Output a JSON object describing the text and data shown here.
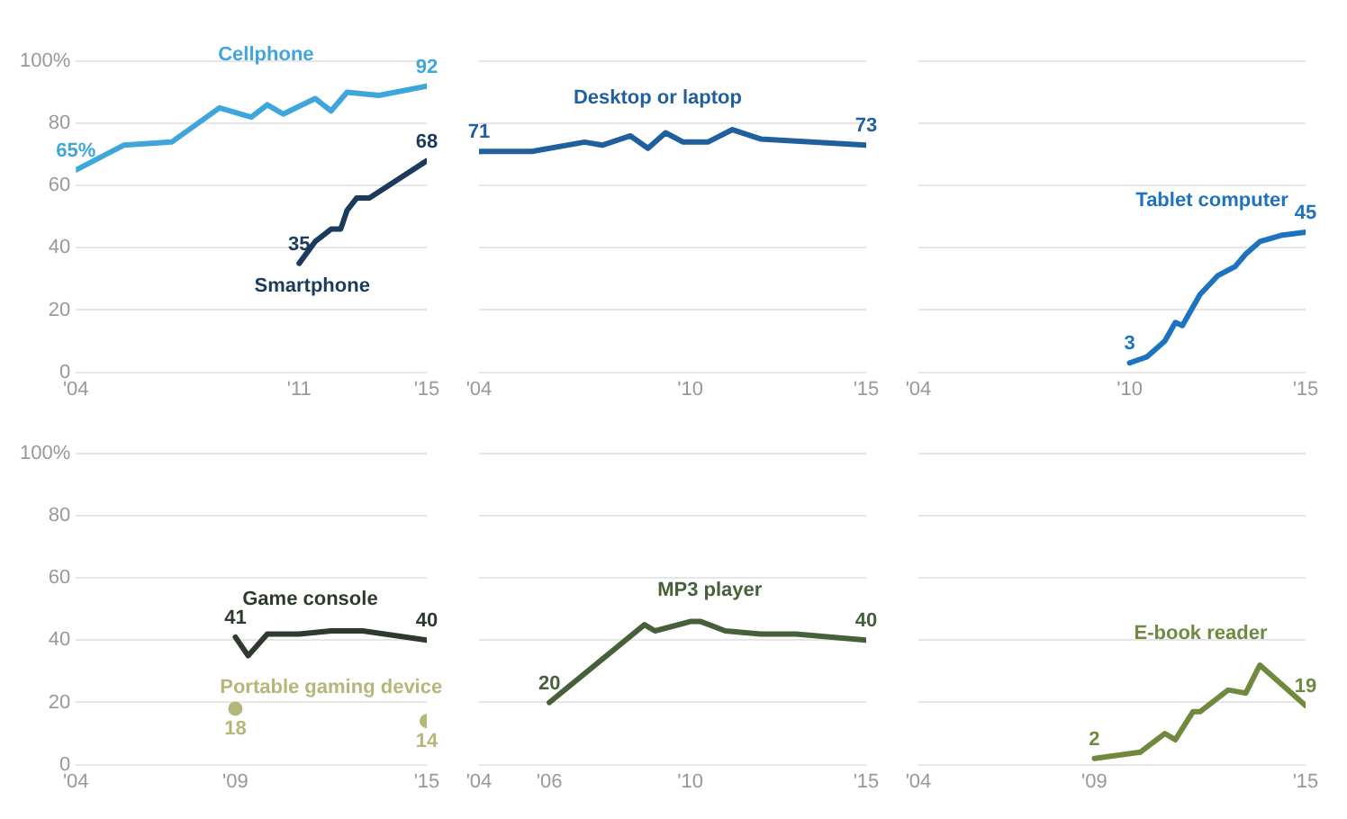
{
  "chart_data": [
    {
      "type": "line",
      "xlim": [
        2004,
        2015
      ],
      "xticks": [
        {
          "value": 2004,
          "label": "'04"
        },
        {
          "value": 2011,
          "label": "'11"
        },
        {
          "value": 2015,
          "label": "'15"
        }
      ],
      "ylim": [
        0,
        100
      ],
      "yticks": [
        0,
        20,
        40,
        60,
        80,
        {
          "value": 100,
          "label": "100%"
        }
      ],
      "grid": "y",
      "marker": "none",
      "series": [
        {
          "name": "Cellphone",
          "color": "#3fa6dc",
          "x": [
            2004,
            2005.5,
            2007,
            2008.5,
            2009.5,
            2010,
            2010.5,
            2011.5,
            2012,
            2012.5,
            2013.5,
            2015
          ],
          "values": [
            65,
            73,
            74,
            85,
            82,
            86,
            83,
            88,
            84,
            90,
            89,
            92
          ]
        },
        {
          "name": "Smartphone",
          "color": "#1b3a5c",
          "x": [
            2011,
            2011.5,
            2012,
            2012.3,
            2012.5,
            2012.8,
            2013.2,
            2015
          ],
          "values": [
            35,
            42,
            46,
            46,
            52,
            56,
            56,
            68
          ]
        }
      ],
      "annotations": [
        {
          "text": "65%",
          "x": 2004,
          "y": 65
        },
        {
          "text": "92",
          "x": 2015,
          "y": 92
        },
        {
          "text": "35",
          "x": 2011,
          "y": 35
        },
        {
          "text": "68",
          "x": 2015,
          "y": 68
        }
      ]
    },
    {
      "type": "line",
      "xlim": [
        2004,
        2015
      ],
      "xticks": [
        {
          "value": 2004,
          "label": "'04"
        },
        {
          "value": 2010,
          "label": "'10"
        },
        {
          "value": 2015,
          "label": "'15"
        }
      ],
      "ylim": [
        0,
        100
      ],
      "yticks": [
        0,
        20,
        40,
        60,
        80,
        100
      ],
      "tick_labels": "x",
      "grid": "y",
      "marker": "none",
      "series": [
        {
          "name": "Desktop or laptop",
          "color": "#1f5f9e",
          "x": [
            2004,
            2005.5,
            2007,
            2007.5,
            2008.3,
            2008.8,
            2009.3,
            2009.8,
            2010.5,
            2011.2,
            2012,
            2015
          ],
          "values": [
            71,
            71,
            74,
            73,
            76,
            72,
            77,
            74,
            74,
            78,
            75,
            73
          ]
        }
      ],
      "annotations": [
        {
          "text": "71",
          "x": 2004,
          "y": 71
        },
        {
          "text": "73",
          "x": 2015,
          "y": 73
        }
      ]
    },
    {
      "type": "line",
      "xlim": [
        2004,
        2015
      ],
      "xticks": [
        {
          "value": 2004,
          "label": "'04"
        },
        {
          "value": 2010,
          "label": "'10"
        },
        {
          "value": 2015,
          "label": "'15"
        }
      ],
      "ylim": [
        0,
        100
      ],
      "yticks": [
        0,
        20,
        40,
        60,
        80,
        100
      ],
      "tick_labels": "x",
      "grid": "y",
      "marker": "none",
      "series": [
        {
          "name": "Tablet computer",
          "color": "#1e73be",
          "x": [
            2010,
            2010.5,
            2011,
            2011.3,
            2011.5,
            2012,
            2012.5,
            2013,
            2013.3,
            2013.7,
            2014.3,
            2015
          ],
          "values": [
            3,
            5,
            10,
            16,
            15,
            25,
            31,
            34,
            38,
            42,
            44,
            45
          ]
        }
      ],
      "annotations": [
        {
          "text": "3",
          "x": 2010,
          "y": 3
        },
        {
          "text": "45",
          "x": 2015,
          "y": 45
        }
      ]
    },
    {
      "type": "line",
      "xlim": [
        2004,
        2015
      ],
      "xticks": [
        {
          "value": 2004,
          "label": "'04"
        },
        {
          "value": 2009,
          "label": "'09"
        },
        {
          "value": 2015,
          "label": "'15"
        }
      ],
      "ylim": [
        0,
        100
      ],
      "yticks": [
        0,
        20,
        40,
        60,
        80,
        {
          "value": 100,
          "label": "100%"
        }
      ],
      "grid": "y",
      "marker": "none",
      "series": [
        {
          "name": "Game console",
          "color": "#2e3a2e",
          "x": [
            2009,
            2009.4,
            2010,
            2011,
            2012,
            2013,
            2015
          ],
          "values": [
            41,
            35,
            42,
            42,
            43,
            43,
            40
          ]
        },
        {
          "name": "Portable gaming device",
          "type": "scatter",
          "marker": "circle",
          "color": "#b7b67a",
          "x": [
            2009,
            2015
          ],
          "values": [
            18,
            14
          ]
        }
      ],
      "annotations": [
        {
          "text": "41",
          "x": 2009,
          "y": 41
        },
        {
          "text": "40",
          "x": 2015,
          "y": 40
        },
        {
          "text": "18",
          "x": 2009,
          "y": 18
        },
        {
          "text": "14",
          "x": 2015,
          "y": 14
        }
      ]
    },
    {
      "type": "line",
      "xlim": [
        2004,
        2015
      ],
      "xticks": [
        {
          "value": 2004,
          "label": "'04"
        },
        {
          "value": 2006,
          "label": "'06"
        },
        {
          "value": 2010,
          "label": "'10"
        },
        {
          "value": 2015,
          "label": "'15"
        }
      ],
      "ylim": [
        0,
        100
      ],
      "yticks": [
        0,
        20,
        40,
        60,
        80,
        100
      ],
      "tick_labels": "x",
      "grid": "y",
      "marker": "none",
      "series": [
        {
          "name": "MP3 player",
          "color": "#46603a",
          "x": [
            2006,
            2008.7,
            2009,
            2010,
            2010.3,
            2011,
            2012,
            2013,
            2015
          ],
          "values": [
            20,
            45,
            43,
            46,
            46,
            43,
            42,
            42,
            40
          ]
        }
      ],
      "annotations": [
        {
          "text": "20",
          "x": 2006,
          "y": 20
        },
        {
          "text": "40",
          "x": 2015,
          "y": 40
        }
      ]
    },
    {
      "type": "line",
      "xlim": [
        2004,
        2015
      ],
      "xticks": [
        {
          "value": 2004,
          "label": "'04"
        },
        {
          "value": 2009,
          "label": "'09"
        },
        {
          "value": 2015,
          "label": "'15"
        }
      ],
      "ylim": [
        0,
        100
      ],
      "yticks": [
        0,
        20,
        40,
        60,
        80,
        100
      ],
      "tick_labels": "x",
      "grid": "y",
      "marker": "none",
      "series": [
        {
          "name": "E-book reader",
          "color": "#6f8a3f",
          "x": [
            2009,
            2010.3,
            2011,
            2011.3,
            2011.8,
            2012,
            2012.8,
            2013.3,
            2013.7,
            2015
          ],
          "values": [
            2,
            4,
            10,
            8,
            17,
            17,
            24,
            23,
            32,
            19
          ]
        }
      ],
      "annotations": [
        {
          "text": "2",
          "x": 2009,
          "y": 2
        },
        {
          "text": "19",
          "x": 2015,
          "y": 19
        }
      ]
    }
  ]
}
